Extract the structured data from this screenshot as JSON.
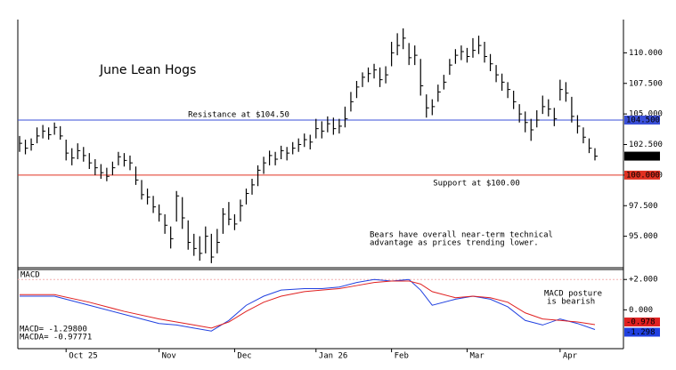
{
  "chart_data": {
    "type": "hlc",
    "title": "June Lean Hogs",
    "categories": [
      null,
      null,
      null,
      null,
      null,
      null,
      null,
      null,
      "Oct 25",
      null,
      null,
      null,
      null,
      null,
      null,
      null,
      null,
      null,
      null,
      null,
      null,
      null,
      null,
      null,
      "Nov",
      null,
      null,
      null,
      null,
      null,
      null,
      null,
      null,
      null,
      null,
      null,
      null,
      "Dec",
      null,
      null,
      null,
      null,
      null,
      null,
      null,
      null,
      null,
      null,
      null,
      null,
      null,
      "Jan 26",
      null,
      null,
      null,
      null,
      null,
      null,
      null,
      null,
      null,
      null,
      null,
      null,
      "Feb",
      null,
      null,
      null,
      null,
      null,
      null,
      null,
      null,
      null,
      null,
      null,
      null,
      "Mar",
      null,
      null,
      null,
      null,
      null,
      null,
      null,
      null,
      null,
      null,
      null,
      null,
      null,
      null,
      null,
      "Apr",
      null,
      null,
      null,
      null,
      null,
      null
    ],
    "high": [
      103.2,
      102.9,
      103.0,
      103.9,
      104.1,
      103.9,
      104.3,
      104.0,
      102.9,
      102.2,
      102.6,
      102.3,
      101.8,
      101.3,
      100.9,
      100.6,
      101.1,
      101.9,
      101.8,
      101.6,
      100.7,
      99.6,
      98.9,
      98.3,
      97.6,
      96.8,
      95.8,
      98.7,
      98.2,
      96.3,
      95.2,
      95.0,
      95.8,
      95.2,
      95.6,
      97.3,
      97.8,
      96.8,
      98.0,
      98.9,
      99.7,
      100.8,
      101.5,
      102.0,
      101.9,
      102.4,
      102.3,
      102.7,
      103.0,
      103.4,
      103.3,
      104.6,
      104.4,
      104.8,
      104.7,
      104.6,
      105.6,
      106.8,
      107.7,
      108.4,
      108.8,
      109.1,
      108.8,
      108.9,
      110.9,
      111.6,
      112.0,
      110.8,
      110.6,
      109.5,
      106.6,
      106.2,
      107.4,
      108.2,
      109.5,
      110.3,
      110.6,
      110.4,
      111.2,
      111.4,
      110.9,
      109.9,
      109.0,
      108.3,
      107.6,
      106.9,
      105.8,
      105.2,
      104.6,
      105.3,
      106.5,
      106.2,
      105.5,
      107.8,
      107.6,
      106.4,
      104.9,
      103.9,
      103.0,
      102.2
    ],
    "low": [
      101.9,
      101.7,
      102.0,
      102.6,
      103.0,
      102.9,
      103.3,
      102.9,
      101.2,
      100.8,
      101.3,
      101.1,
      100.5,
      100.0,
      99.7,
      99.5,
      100.0,
      100.8,
      100.7,
      100.4,
      99.2,
      98.0,
      97.6,
      96.9,
      96.2,
      95.2,
      94.0,
      96.2,
      95.6,
      93.9,
      93.4,
      93.0,
      93.6,
      92.8,
      93.6,
      95.2,
      95.9,
      95.5,
      96.2,
      97.6,
      98.4,
      99.1,
      100.1,
      100.8,
      100.8,
      101.3,
      101.2,
      101.7,
      101.9,
      102.3,
      102.1,
      103.0,
      103.0,
      103.5,
      103.3,
      103.4,
      103.9,
      105.2,
      106.3,
      107.2,
      107.6,
      107.9,
      107.2,
      107.5,
      108.9,
      109.8,
      110.3,
      109.0,
      109.0,
      106.5,
      104.7,
      104.9,
      106.0,
      107.0,
      108.2,
      109.1,
      109.4,
      109.2,
      109.6,
      109.9,
      109.2,
      108.5,
      107.6,
      106.9,
      106.3,
      105.4,
      104.3,
      103.5,
      102.8,
      103.9,
      105.0,
      104.8,
      104.0,
      106.1,
      106.0,
      104.3,
      103.4,
      102.6,
      101.8,
      101.2
    ],
    "close": [
      102.6,
      102.2,
      102.5,
      103.2,
      103.6,
      103.3,
      103.9,
      103.2,
      101.8,
      101.4,
      102.0,
      101.6,
      101.0,
      100.6,
      100.2,
      99.9,
      100.6,
      101.5,
      101.2,
      101.0,
      99.6,
      98.4,
      98.2,
      97.4,
      96.8,
      95.9,
      94.8,
      98.3,
      96.5,
      94.5,
      94.0,
      93.6,
      95.0,
      93.3,
      94.5,
      96.8,
      96.4,
      96.0,
      97.5,
      98.5,
      99.2,
      100.4,
      101.0,
      101.6,
      101.3,
      102.0,
      101.8,
      102.2,
      102.5,
      102.9,
      102.7,
      103.8,
      103.6,
      104.2,
      103.8,
      104.0,
      104.6,
      106.0,
      107.2,
      108.0,
      108.3,
      108.6,
      107.8,
      108.2,
      110.0,
      110.6,
      111.2,
      109.6,
      109.8,
      107.3,
      105.5,
      105.6,
      106.8,
      107.6,
      109.0,
      109.8,
      110.1,
      109.7,
      110.2,
      110.6,
      109.7,
      109.1,
      108.2,
      107.6,
      107.0,
      106.0,
      105.0,
      104.3,
      103.7,
      104.5,
      105.6,
      105.4,
      104.6,
      107.0,
      106.7,
      104.8,
      104.0,
      103.1,
      102.2,
      101.55
    ],
    "color": "#000000",
    "ylim": [
      92.5,
      112.5
    ],
    "yticks": [
      {
        "value": 110,
        "label": "110.000"
      },
      {
        "value": 107.5,
        "label": "107.500"
      },
      {
        "value": 105,
        "label": "105.000"
      },
      {
        "value": 102.5,
        "label": "102.500"
      },
      {
        "value": 100,
        "label": "100.000"
      },
      {
        "value": 97.5,
        "label": "97.500"
      },
      {
        "value": 95,
        "label": "95.000"
      }
    ],
    "levels": [
      {
        "value": 104.5,
        "text": "Resistance at $104.50",
        "color": "#3a4fd8",
        "tag": "104.500"
      },
      {
        "value": 100,
        "text": "Support at $100.00",
        "color": "#e03020",
        "tag": "100.000"
      }
    ],
    "last_tag": {
      "value": 101.55,
      "label": "101.550",
      "color": "#000000"
    },
    "annotation": [
      "Bears have overall near-term technical",
      "advantage as prices trending lower."
    ],
    "macd": {
      "title": "MACD",
      "ylim": [
        -2.5,
        2.6
      ],
      "yticks": [
        {
          "value": 2,
          "label": "+2.000"
        },
        {
          "value": 0,
          "label": "0.000"
        }
      ],
      "x": [
        0,
        6,
        12,
        18,
        24,
        27,
        30,
        33,
        36,
        39,
        42,
        45,
        49,
        52,
        55,
        58,
        61,
        64,
        67,
        69,
        71,
        75,
        78,
        81,
        84,
        87,
        90,
        93,
        96,
        99
      ],
      "series": [
        {
          "name": "MACD",
          "color": "#2040e0",
          "values": [
            0.9,
            0.9,
            0.3,
            -0.3,
            -0.9,
            -1.0,
            -1.2,
            -1.4,
            -0.7,
            0.3,
            0.9,
            1.3,
            1.4,
            1.4,
            1.5,
            1.8,
            2.0,
            1.9,
            2.0,
            1.3,
            0.3,
            0.7,
            0.9,
            0.7,
            0.2,
            -0.7,
            -1.0,
            -0.6,
            -0.9,
            -1.298
          ],
          "value_label": "-1.298",
          "readout": "MACD=   -1.29800"
        },
        {
          "name": "MACDA",
          "color": "#e02020",
          "values": [
            1.0,
            1.0,
            0.5,
            -0.1,
            -0.6,
            -0.8,
            -1.0,
            -1.2,
            -0.8,
            -0.1,
            0.5,
            0.9,
            1.2,
            1.3,
            1.4,
            1.6,
            1.8,
            1.9,
            1.9,
            1.7,
            1.2,
            0.8,
            0.9,
            0.8,
            0.5,
            -0.2,
            -0.6,
            -0.7,
            -0.8,
            -0.978
          ],
          "value_label": "-0.978",
          "readout": "MACDA= -0.97771"
        }
      ],
      "annotation": [
        "MACD posture",
        "is bearish"
      ]
    }
  }
}
